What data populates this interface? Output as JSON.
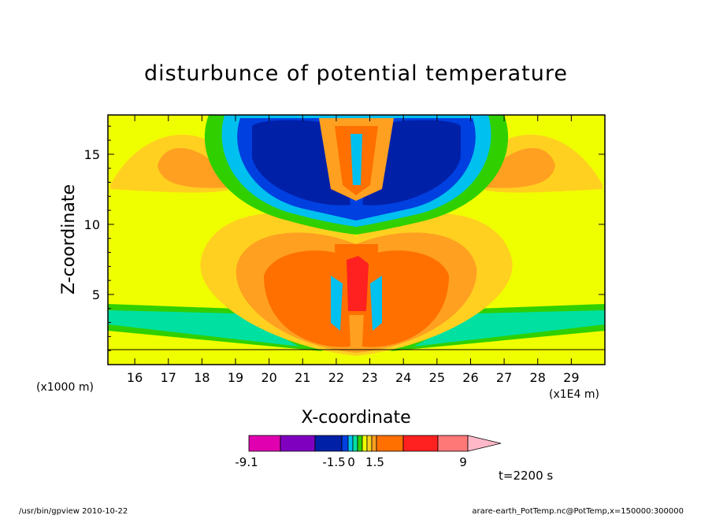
{
  "chart_data": {
    "type": "heatmap",
    "title": "disturbunce of potential temperature",
    "xlabel": "X-coordinate",
    "ylabel": "Z-coordinate",
    "xlim": [
      152000,
      300000
    ],
    "ylim": [
      0,
      17.8
    ],
    "x_ticks": [
      "16",
      "17",
      "18",
      "19",
      "20",
      "21",
      "22",
      "23",
      "24",
      "25",
      "26",
      "27",
      "28",
      "29"
    ],
    "y_ticks": [
      "5",
      "10",
      "15"
    ],
    "x_scale_note": "(x1E4 m)",
    "y_scale_note": "(x1000 m)",
    "colorbar": {
      "tick_labels": [
        "-9.1",
        "-1.5",
        "0",
        "1.5",
        "9"
      ],
      "colors": [
        "#e000b0",
        "#8000c0",
        "#0020a8",
        "#0040e0",
        "#00c0f0",
        "#00e0a0",
        "#30d000",
        "#f0ff00",
        "#ffd020",
        "#ffa020",
        "#ff7000",
        "#ff2020",
        "#ff7878",
        "#ffb8c8"
      ]
    },
    "time_label": "t=2200 s",
    "footer_left": "/usr/bin/gpview   2010-10-22",
    "footer_right": "arare-earth_PotTemp.nc@PotTemp,x=150000:300000"
  }
}
